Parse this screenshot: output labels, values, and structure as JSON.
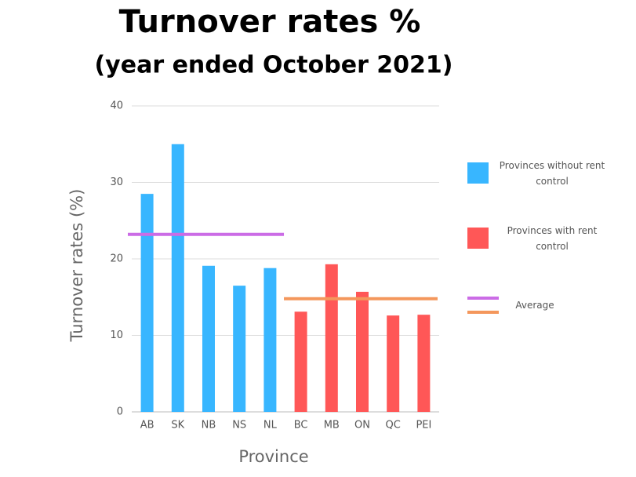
{
  "chart_data": {
    "type": "bar",
    "title": "Turnover rates %",
    "subtitle": "(year ended October 2021)",
    "x_label": "Province",
    "y_label": "Turnover rates (%)",
    "categories": [
      "AB",
      "SK",
      "NB",
      "NS",
      "NL",
      "BC",
      "MB",
      "ON",
      "QC",
      "PEI"
    ],
    "series": [
      {
        "name": "Provinces without rent control",
        "color": "#38b6ff",
        "values": [
          28.5,
          35,
          19.1,
          16.5,
          18.8,
          null,
          null,
          null,
          null,
          null
        ]
      },
      {
        "name": "Provinces with rent control",
        "color": "#ff5757",
        "values": [
          null,
          null,
          null,
          null,
          null,
          13.1,
          19.3,
          15.7,
          12.6,
          12.7
        ]
      }
    ],
    "average_lines": {
      "name": "Average",
      "lines": [
        {
          "color": "#cb6ce6",
          "values": [
            23.2,
            23.2,
            23.2,
            23.2,
            23.2,
            null,
            null,
            null,
            null,
            null
          ]
        },
        {
          "color": "#f4975c",
          "values": [
            null,
            null,
            null,
            null,
            null,
            14.8,
            14.8,
            14.8,
            14.8,
            14.8
          ]
        }
      ]
    },
    "ylim": [
      0,
      40
    ],
    "yticks": [
      0,
      10,
      20,
      30,
      40
    ],
    "grid": true
  }
}
